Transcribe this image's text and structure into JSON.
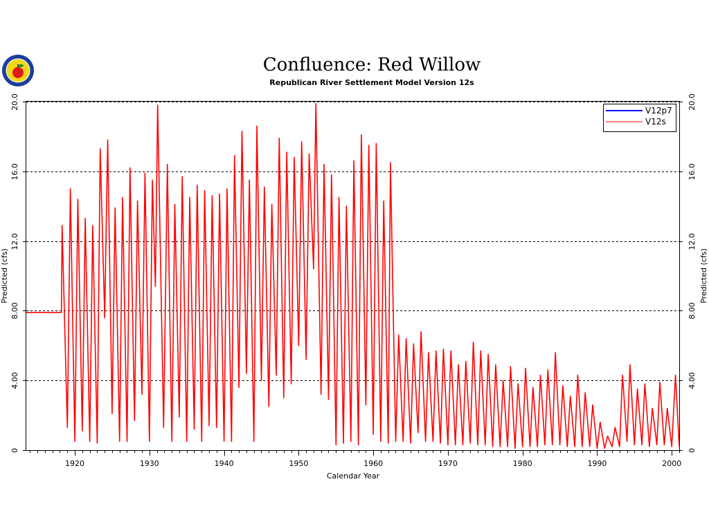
{
  "chart_data": {
    "type": "line",
    "title": "Confluence:  Red  Willow",
    "subtitle": "Republican  River  Settlement  Model  Version  12s",
    "xlabel": "Calendar Year",
    "ylabel_left": "Predicted  (cfs)",
    "ylabel_right": "Predicted  (cfs)",
    "xlim": [
      1913.5,
      2001
    ],
    "ylim": [
      0,
      20
    ],
    "x_ticks": [
      1920,
      1930,
      1940,
      1950,
      1960,
      1970,
      1980,
      1990,
      2000
    ],
    "y_ticks": [
      0,
      4,
      8,
      12,
      16,
      20
    ],
    "y_tick_labels": [
      "0",
      "4.00",
      "8.00",
      "12.0",
      "16.0",
      "20.0"
    ],
    "grid": "horizontal dashed",
    "legend_position": "top-right",
    "series": [
      {
        "name": "V12p7",
        "color": "#0000ff",
        "values": []
      },
      {
        "name": "V12s",
        "color": "#ff0000",
        "start_year": 1913.5,
        "initial_constant": 7.9,
        "constant_until": 1918.2,
        "annual_peaks": [
          [
            1918.3,
            12.9
          ],
          [
            1919.4,
            15.0
          ],
          [
            1920.4,
            14.4
          ],
          [
            1921.4,
            13.3
          ],
          [
            1922.4,
            12.9
          ],
          [
            1923.4,
            17.3
          ],
          [
            1924.4,
            17.8
          ],
          [
            1925.4,
            13.9
          ],
          [
            1926.4,
            14.5
          ],
          [
            1927.4,
            16.2
          ],
          [
            1928.4,
            14.3
          ],
          [
            1929.4,
            15.9
          ],
          [
            1930.4,
            15.5
          ],
          [
            1931.1,
            19.8
          ],
          [
            1932.4,
            16.4
          ],
          [
            1933.4,
            14.1
          ],
          [
            1934.4,
            15.7
          ],
          [
            1935.4,
            14.5
          ],
          [
            1936.4,
            15.2
          ],
          [
            1937.4,
            14.9
          ],
          [
            1938.4,
            14.6
          ],
          [
            1939.4,
            14.7
          ],
          [
            1940.4,
            15.0
          ],
          [
            1941.4,
            16.9
          ],
          [
            1942.4,
            18.3
          ],
          [
            1943.4,
            15.5
          ],
          [
            1944.4,
            18.6
          ],
          [
            1945.4,
            15.1
          ],
          [
            1946.4,
            14.1
          ],
          [
            1947.4,
            17.9
          ],
          [
            1948.4,
            17.1
          ],
          [
            1949.4,
            16.8
          ],
          [
            1950.4,
            17.7
          ],
          [
            1951.4,
            17.0
          ],
          [
            1952.3,
            19.9
          ],
          [
            1953.4,
            16.4
          ],
          [
            1954.4,
            15.8
          ],
          [
            1955.4,
            14.5
          ],
          [
            1956.4,
            14.0
          ],
          [
            1957.4,
            16.6
          ],
          [
            1958.4,
            18.1
          ],
          [
            1959.4,
            17.5
          ],
          [
            1960.4,
            17.6
          ],
          [
            1961.4,
            14.3
          ],
          [
            1962.3,
            16.5
          ],
          [
            1963.4,
            6.6
          ],
          [
            1964.4,
            6.4
          ],
          [
            1965.4,
            6.1
          ],
          [
            1966.4,
            6.8
          ],
          [
            1967.4,
            5.6
          ],
          [
            1968.4,
            5.7
          ],
          [
            1969.4,
            5.8
          ],
          [
            1970.4,
            5.7
          ],
          [
            1971.4,
            4.9
          ],
          [
            1972.4,
            5.1
          ],
          [
            1973.4,
            6.2
          ],
          [
            1974.4,
            5.7
          ],
          [
            1975.4,
            5.5
          ],
          [
            1976.4,
            4.9
          ],
          [
            1977.4,
            4.0
          ],
          [
            1978.4,
            4.8
          ],
          [
            1979.4,
            3.8
          ],
          [
            1980.4,
            4.7
          ],
          [
            1981.4,
            3.6
          ],
          [
            1982.4,
            4.3
          ],
          [
            1983.4,
            4.6
          ],
          [
            1984.4,
            5.6
          ],
          [
            1985.4,
            3.7
          ],
          [
            1986.4,
            3.1
          ],
          [
            1987.4,
            4.3
          ],
          [
            1988.4,
            3.3
          ],
          [
            1989.4,
            2.6
          ],
          [
            1990.4,
            1.6
          ],
          [
            1991.4,
            0.8
          ],
          [
            1992.4,
            1.3
          ],
          [
            1993.4,
            4.3
          ],
          [
            1994.4,
            4.9
          ],
          [
            1995.4,
            3.5
          ],
          [
            1996.4,
            3.8
          ],
          [
            1997.4,
            2.4
          ],
          [
            1998.4,
            3.9
          ],
          [
            1999.4,
            2.4
          ],
          [
            2000.5,
            4.3
          ]
        ],
        "annual_troughs": [
          [
            1919.0,
            1.3
          ],
          [
            1920.0,
            0.5
          ],
          [
            1921.0,
            1.1
          ],
          [
            1922.0,
            0.5
          ],
          [
            1923.0,
            0.4
          ],
          [
            1924.0,
            7.6
          ],
          [
            1925.0,
            2.1
          ],
          [
            1926.0,
            0.5
          ],
          [
            1927.0,
            0.5
          ],
          [
            1928.0,
            1.7
          ],
          [
            1929.0,
            3.2
          ],
          [
            1930.0,
            0.5
          ],
          [
            1930.8,
            9.4
          ],
          [
            1931.9,
            1.3
          ],
          [
            1933.0,
            0.5
          ],
          [
            1934.0,
            1.9
          ],
          [
            1935.0,
            0.5
          ],
          [
            1936.0,
            1.2
          ],
          [
            1937.0,
            0.5
          ],
          [
            1938.0,
            1.4
          ],
          [
            1939.0,
            1.3
          ],
          [
            1940.0,
            0.5
          ],
          [
            1941.0,
            0.5
          ],
          [
            1942.0,
            3.6
          ],
          [
            1943.0,
            4.4
          ],
          [
            1944.0,
            0.5
          ],
          [
            1945.0,
            4.0
          ],
          [
            1946.0,
            2.5
          ],
          [
            1947.0,
            4.3
          ],
          [
            1948.0,
            3.0
          ],
          [
            1949.0,
            3.8
          ],
          [
            1950.0,
            6.0
          ],
          [
            1951.0,
            5.2
          ],
          [
            1952.0,
            10.4
          ],
          [
            1953.0,
            3.2
          ],
          [
            1954.0,
            2.9
          ],
          [
            1955.0,
            0.3
          ],
          [
            1956.0,
            0.4
          ],
          [
            1957.0,
            0.5
          ],
          [
            1958.0,
            0.3
          ],
          [
            1959.0,
            2.6
          ],
          [
            1960.0,
            0.9
          ],
          [
            1961.0,
            0.5
          ],
          [
            1962.0,
            0.4
          ],
          [
            1963.0,
            0.5
          ],
          [
            1964.0,
            0.5
          ],
          [
            1965.0,
            0.4
          ],
          [
            1966.0,
            1.0
          ],
          [
            1967.0,
            0.5
          ],
          [
            1968.0,
            0.5
          ],
          [
            1969.0,
            0.4
          ],
          [
            1970.0,
            0.3
          ],
          [
            1971.0,
            0.3
          ],
          [
            1972.0,
            0.3
          ],
          [
            1973.0,
            0.4
          ],
          [
            1974.0,
            0.3
          ],
          [
            1975.0,
            0.3
          ],
          [
            1976.0,
            0.2
          ],
          [
            1977.0,
            0.2
          ],
          [
            1978.0,
            0.2
          ],
          [
            1979.0,
            0.1
          ],
          [
            1980.0,
            0.2
          ],
          [
            1981.0,
            0.2
          ],
          [
            1982.0,
            0.2
          ],
          [
            1983.0,
            0.3
          ],
          [
            1984.0,
            0.3
          ],
          [
            1985.0,
            0.3
          ],
          [
            1986.0,
            0.2
          ],
          [
            1987.0,
            0.2
          ],
          [
            1988.0,
            0.2
          ],
          [
            1989.0,
            0.2
          ],
          [
            1990.0,
            0.1
          ],
          [
            1991.0,
            0.1
          ],
          [
            1992.0,
            0.2
          ],
          [
            1993.0,
            0.2
          ],
          [
            1994.0,
            0.5
          ],
          [
            1995.0,
            0.3
          ],
          [
            1996.0,
            0.3
          ],
          [
            1997.0,
            0.2
          ],
          [
            1998.0,
            0.3
          ],
          [
            1999.0,
            0.3
          ],
          [
            2000.0,
            0.2
          ],
          [
            2001.0,
            0.2
          ]
        ]
      }
    ]
  },
  "logo": {
    "name": "state-seal-logo",
    "ring_color": "#1a3d9e",
    "center_color": "#f2d61b",
    "apple_color": "#e01a1a"
  }
}
